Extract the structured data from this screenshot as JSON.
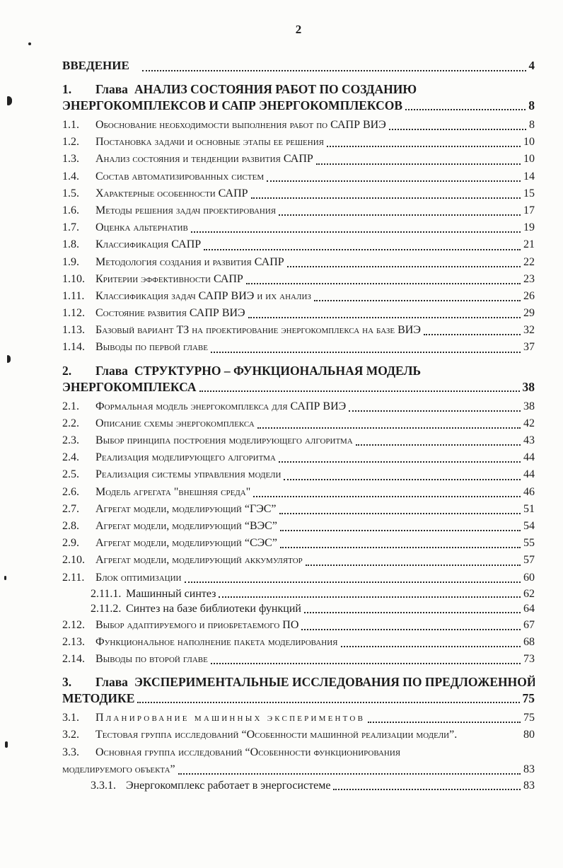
{
  "page_number": "2",
  "ink_color": "#1b1b1b",
  "toc": {
    "intro": {
      "label": "ВВЕДЕНИЕ",
      "page": "4"
    },
    "entries": [
      {
        "type": "chapter",
        "num": "1.",
        "prefix": "Глава",
        "title": "АНАЛИЗ СОСТОЯНИЯ РАБОТ ПО СОЗДАНИЮ",
        "title2": "ЭНЕРГОКОМПЛЕКСОВ И САПР ЭНЕРГОКОМПЛЕКСОВ",
        "page": "8"
      },
      {
        "type": "item",
        "num": "1.1.",
        "text": "Обоснование необходимости выполнения работ по САПР ВИЭ",
        "page": "8"
      },
      {
        "type": "item",
        "num": "1.2.",
        "text": "Постановка задачи и основные этапы ее решения",
        "page": "10"
      },
      {
        "type": "item",
        "num": "1.3.",
        "text": "Анализ состояния и тенденции развития САПР",
        "page": "10"
      },
      {
        "type": "item",
        "num": "1.4.",
        "text": "Состав автоматизированных систем",
        "page": "14"
      },
      {
        "type": "item",
        "num": "1.5.",
        "text": "Характерные особенности САПР",
        "page": "15"
      },
      {
        "type": "item",
        "num": "1.6.",
        "text": "Методы решения задач проектирования",
        "page": "17"
      },
      {
        "type": "item",
        "num": "1.7.",
        "text": "Оценка альтернатив",
        "page": "19"
      },
      {
        "type": "item",
        "num": "1.8.",
        "text": "Классификация САПР",
        "page": "21"
      },
      {
        "type": "item",
        "num": "1.9.",
        "text": "Методология создания и развития САПР",
        "page": "22"
      },
      {
        "type": "item",
        "num": "1.10.",
        "text": "Критерии эффективности САПР",
        "page": "23"
      },
      {
        "type": "item",
        "num": "1.11.",
        "text": "Классификация задач САПР ВИЭ и их анализ",
        "page": "26"
      },
      {
        "type": "item",
        "num": "1.12.",
        "text": "Состояние развития САПР ВИЭ",
        "page": "29"
      },
      {
        "type": "item",
        "num": "1.13.",
        "text": "Базовый вариант ТЗ на проектирование энергокомплекса на базе ВИЭ",
        "page": "32"
      },
      {
        "type": "item",
        "num": "1.14.",
        "text": "Выводы по первой главе",
        "page": "37"
      },
      {
        "type": "chapter",
        "num": "2.",
        "prefix": "Глава",
        "title": "СТРУКТУРНО – ФУНКЦИОНАЛЬНАЯ МОДЕЛЬ",
        "title2": "ЭНЕРГОКОМПЛЕКСА",
        "page": "38"
      },
      {
        "type": "item",
        "num": "2.1.",
        "text": "Формальная модель энергокомплекса для САПР ВИЭ",
        "page": "38"
      },
      {
        "type": "item",
        "num": "2.2.",
        "text": "Описание схемы энергокомплекса",
        "page": "42"
      },
      {
        "type": "item",
        "num": "2.3.",
        "text": "Выбор принципа построения моделирующего алгоритма",
        "page": "43"
      },
      {
        "type": "item",
        "num": "2.4.",
        "text": "Реализация моделирующего алгоритма",
        "page": "44"
      },
      {
        "type": "item",
        "num": "2.5.",
        "text": "Реализация системы управления модели",
        "page": "44"
      },
      {
        "type": "item",
        "num": "2.6.",
        "text": "Модель агрегата \"внешняя среда\"",
        "page": "46"
      },
      {
        "type": "item",
        "num": "2.7.",
        "text": "Агрегат модели, моделирующий “ГЭС”",
        "page": "51"
      },
      {
        "type": "item",
        "num": "2.8.",
        "text": "Агрегат модели, моделирующий “ВЭС”",
        "page": "54"
      },
      {
        "type": "item",
        "num": "2.9.",
        "text": "Агрегат модели, моделирующий “СЭС”",
        "page": "55"
      },
      {
        "type": "item",
        "num": "2.10.",
        "text": "Агрегат модели, моделирующий  аккумулятор",
        "page": "57"
      },
      {
        "type": "item",
        "num": "2.11.",
        "text": "Блок оптимизации",
        "page": "60"
      },
      {
        "type": "subitem",
        "num": "2.11.1.",
        "text": "Машинный синтез",
        "page": "62"
      },
      {
        "type": "subitem",
        "num": "2.11.2.",
        "text": "Синтез на базе библиотеки функций",
        "page": "64"
      },
      {
        "type": "item",
        "num": "2.12.",
        "text": "Выбор адаптируемого и приобретаемого ПО",
        "page": "67"
      },
      {
        "type": "item",
        "num": "2.13.",
        "text": "Функциональное наполнение пакета моделирования",
        "page": "68"
      },
      {
        "type": "item",
        "num": "2.14.",
        "text": "Выводы по второй главе",
        "page": "73"
      },
      {
        "type": "chapter",
        "num": "3.",
        "prefix": "Глава",
        "title": "ЭКСПЕРИМЕНТАЛЬНЫЕ ИССЛЕДОВАНИЯ ПО ПРЕДЛОЖЕННОЙ",
        "title2": "МЕТОДИКЕ",
        "page": "75"
      },
      {
        "type": "item",
        "num": "3.1.",
        "text": "Планирование машинных экспериментов",
        "page": "75",
        "style": "spaced"
      },
      {
        "type": "item",
        "num": "3.2.",
        "text": "Тестовая группа исследований “Особенности машинной реализации модели”.",
        "page": "80",
        "style": "noleader"
      },
      {
        "type": "item",
        "num": "3.3.",
        "text": "Основная группа исследований “Особенности функционирования",
        "text2": "моделируемого объекта”",
        "page": "83"
      },
      {
        "type": "subitem",
        "num": "3.3.1.",
        "text": "Энергокомплекс работает в энергосистеме",
        "page": "83"
      }
    ]
  }
}
